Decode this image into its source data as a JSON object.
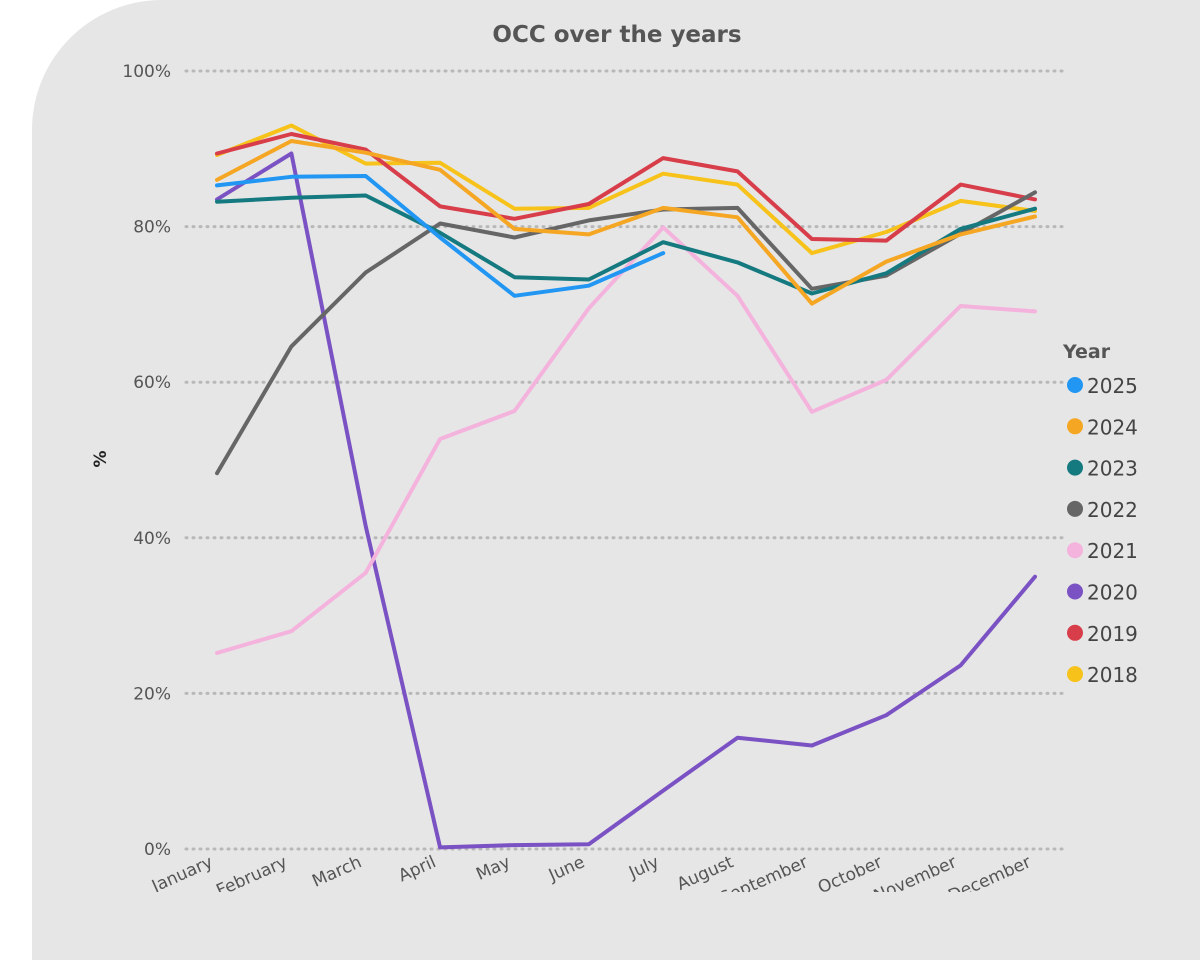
{
  "chart_data": {
    "type": "line",
    "title": "OCC over the years",
    "xlabel": "",
    "ylabel": "%",
    "ylim": [
      0,
      100
    ],
    "y_ticks": [
      {
        "value": 0,
        "label": "0%"
      },
      {
        "value": 20,
        "label": "20%"
      },
      {
        "value": 40,
        "label": "40%"
      },
      {
        "value": 60,
        "label": "60%"
      },
      {
        "value": 80,
        "label": "80%"
      },
      {
        "value": 100,
        "label": "100%"
      }
    ],
    "grid": true,
    "categories": [
      "January",
      "February",
      "March",
      "April",
      "May",
      "June",
      "July",
      "August",
      "September",
      "October",
      "November",
      "December"
    ],
    "legend": {
      "title": "Year",
      "placement": "right"
    },
    "series": [
      {
        "name": "2025",
        "color": "#2196f3",
        "values": [
          85.3,
          86.4,
          86.5,
          78.6,
          71.1,
          72.4,
          76.6,
          null,
          null,
          null,
          null,
          null
        ]
      },
      {
        "name": "2024",
        "color": "#f5a623",
        "values": [
          86.0,
          91.0,
          89.5,
          87.3,
          79.7,
          79.0,
          82.4,
          81.2,
          70.1,
          75.5,
          79.0,
          81.3
        ]
      },
      {
        "name": "2023",
        "color": "#147a80",
        "values": [
          83.2,
          83.7,
          84.0,
          79.2,
          73.5,
          73.2,
          78.0,
          75.4,
          71.4,
          74.0,
          79.7,
          82.3
        ]
      },
      {
        "name": "2022",
        "color": "#666666",
        "values": [
          48.3,
          64.6,
          74.1,
          80.4,
          78.6,
          80.8,
          82.2,
          82.4,
          72.0,
          73.7,
          79.1,
          84.4
        ]
      },
      {
        "name": "2021",
        "color": "#f4b3dd",
        "values": [
          25.2,
          28.0,
          35.5,
          52.7,
          56.3,
          69.5,
          79.9,
          71.1,
          56.2,
          60.3,
          69.8,
          69.1
        ]
      },
      {
        "name": "2020",
        "color": "#7b52c4",
        "values": [
          83.5,
          89.4,
          41.5,
          0.2,
          0.5,
          0.6,
          7.5,
          14.3,
          13.3,
          17.2,
          23.6,
          35.0
        ]
      },
      {
        "name": "2019",
        "color": "#d83d4a",
        "values": [
          89.4,
          91.9,
          89.9,
          82.6,
          81.0,
          82.9,
          88.8,
          87.1,
          78.4,
          78.2,
          85.4,
          83.5
        ]
      },
      {
        "name": "2018",
        "color": "#f7c21a",
        "values": [
          89.2,
          93.0,
          88.1,
          88.2,
          82.3,
          82.4,
          86.8,
          85.4,
          76.6,
          79.3,
          83.3,
          82.0
        ]
      }
    ]
  }
}
